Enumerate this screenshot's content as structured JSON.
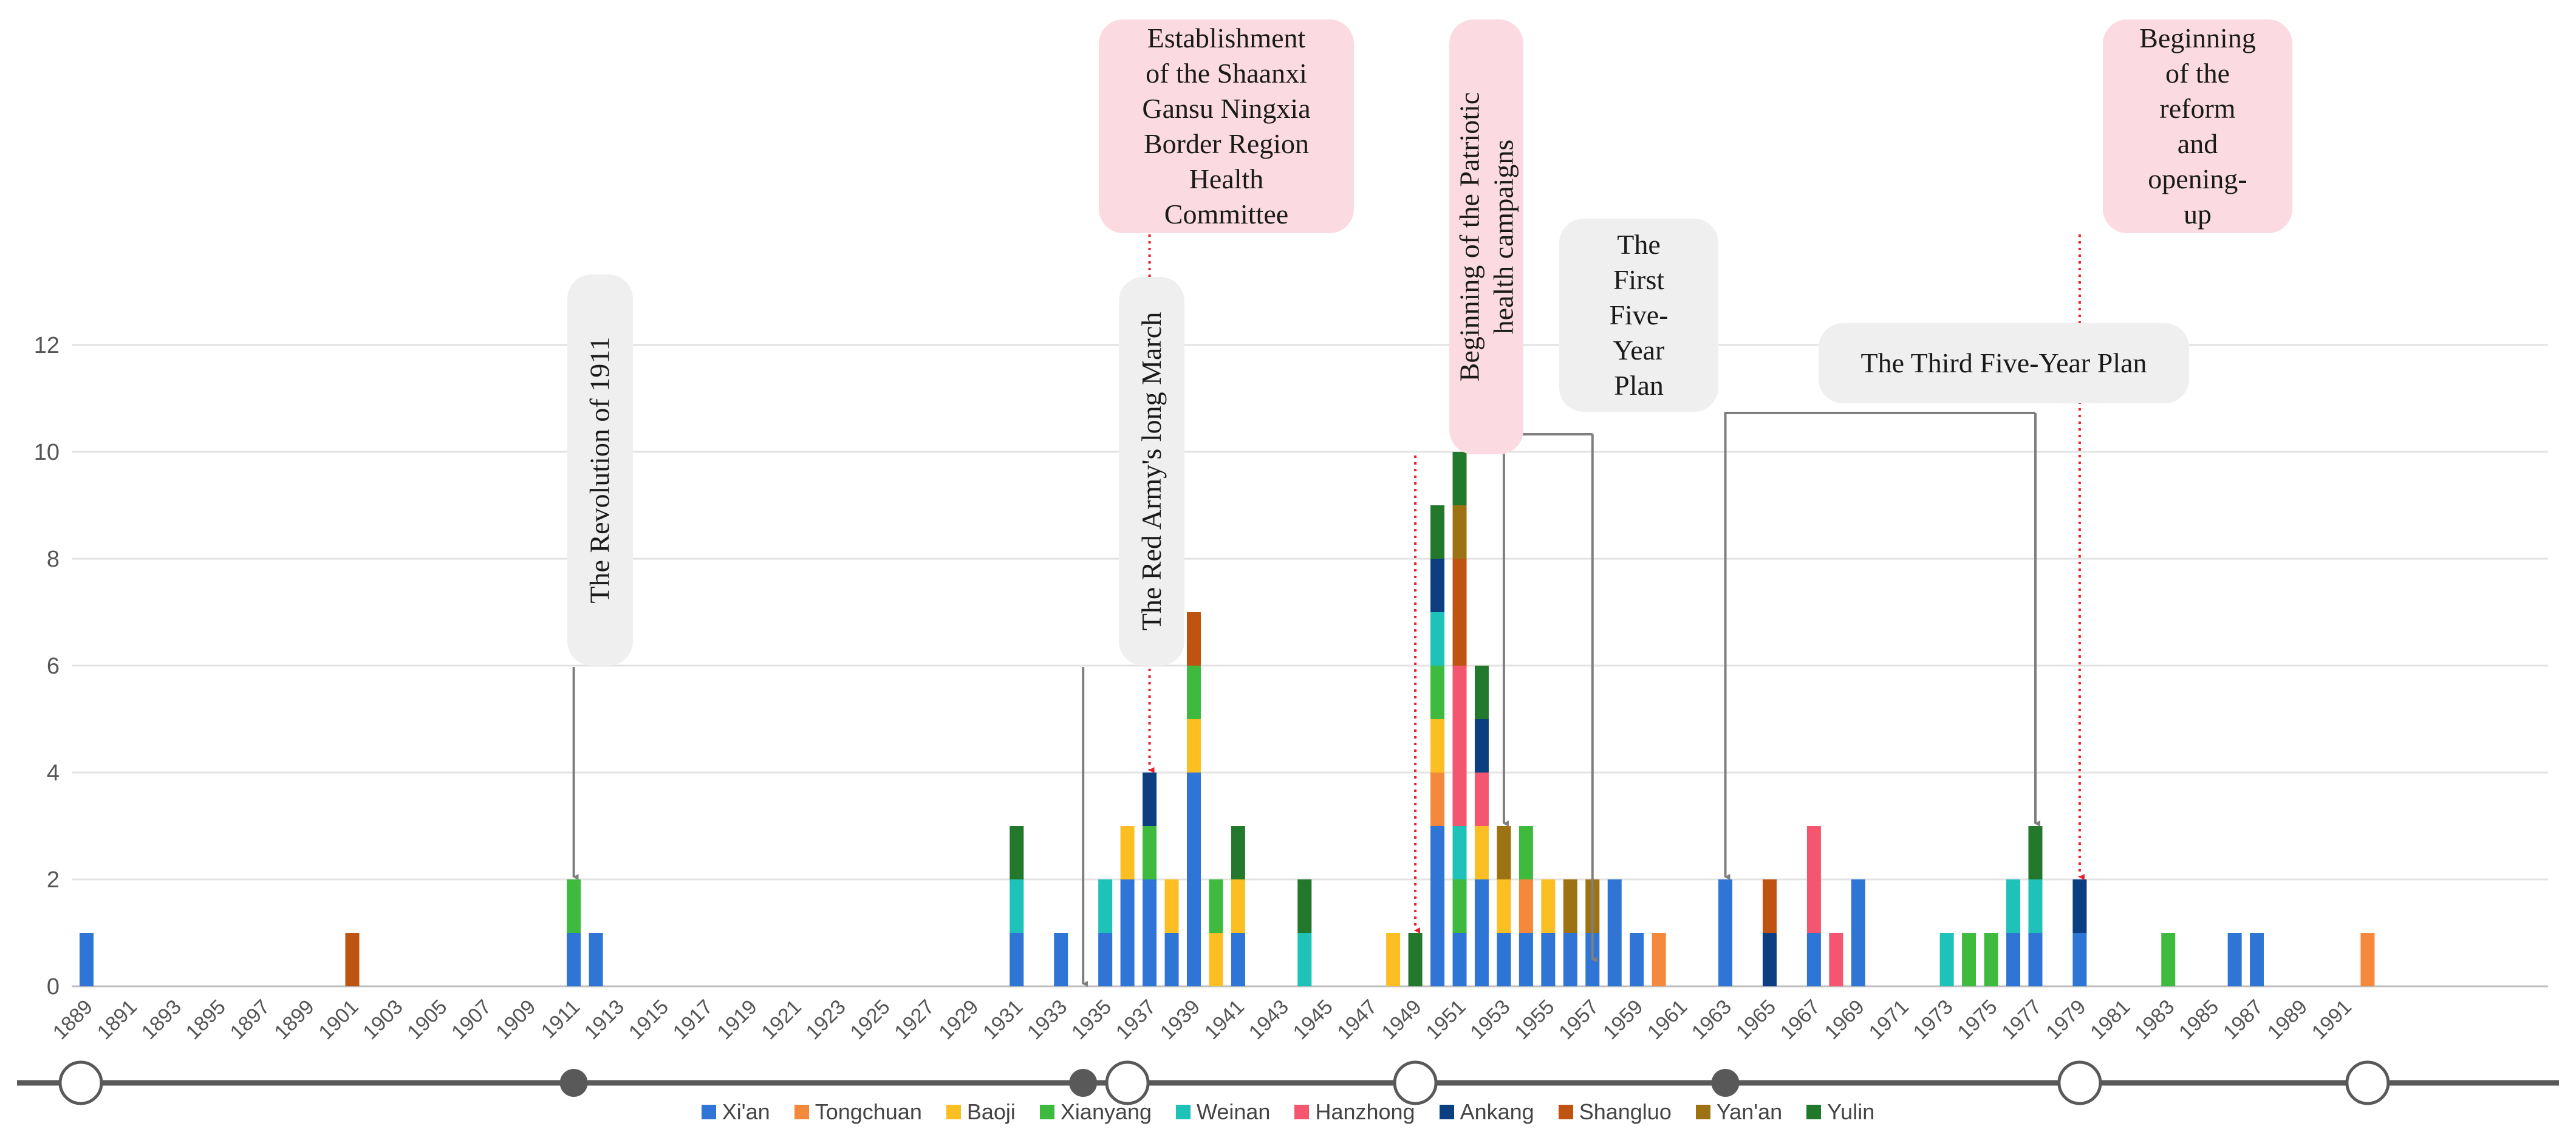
{
  "chart_data": {
    "type": "bar",
    "stacked": true,
    "title": "",
    "xlabel": "",
    "ylabel": "",
    "ylim": [
      0,
      12
    ],
    "yticks": [
      0,
      2,
      4,
      6,
      8,
      10,
      12
    ],
    "grid": true,
    "legend_position": "bottom-center",
    "x_start": 1889,
    "x_end": 1992,
    "x_tick_labels": [
      "1889",
      "1891",
      "1893",
      "1895",
      "1897",
      "1899",
      "1901",
      "1903",
      "1905",
      "1907",
      "1909",
      "1911",
      "1913",
      "1915",
      "1917",
      "1919",
      "1921",
      "1923",
      "1925",
      "1927",
      "1929",
      "1931",
      "1933",
      "1935",
      "1937",
      "1939",
      "1941",
      "1943",
      "1945",
      "1947",
      "1949",
      "1951",
      "1953",
      "1955",
      "1957",
      "1959",
      "1961",
      "1963",
      "1965",
      "1967",
      "1969",
      "1971",
      "1973",
      "1975",
      "1977",
      "1979",
      "1981",
      "1983",
      "1985",
      "1987",
      "1989",
      "1991"
    ],
    "series": [
      {
        "name": "Xi'an",
        "color": "#2e75d6"
      },
      {
        "name": "Tongchuan",
        "color": "#f5893b"
      },
      {
        "name": "Baoji",
        "color": "#fbbf24"
      },
      {
        "name": "Xianyang",
        "color": "#3eba3e"
      },
      {
        "name": "Weinan",
        "color": "#1fc2b8"
      },
      {
        "name": "Hanzhong",
        "color": "#f5566f"
      },
      {
        "name": "Ankang",
        "color": "#0b3f82"
      },
      {
        "name": "Shangluo",
        "color": "#bf5311"
      },
      {
        "name": "Yan'an",
        "color": "#9c7213"
      },
      {
        "name": "Yulin",
        "color": "#22782b"
      }
    ],
    "bars": [
      {
        "year": 1889,
        "stack": [
          [
            "Xi'an",
            1
          ]
        ]
      },
      {
        "year": 1901,
        "stack": [
          [
            "Shangluo",
            1
          ]
        ]
      },
      {
        "year": 1911,
        "stack": [
          [
            "Xi'an",
            1
          ],
          [
            "Xianyang",
            1
          ]
        ]
      },
      {
        "year": 1912,
        "stack": [
          [
            "Xi'an",
            1
          ]
        ]
      },
      {
        "year": 1931,
        "stack": [
          [
            "Xi'an",
            1
          ],
          [
            "Weinan",
            1
          ],
          [
            "Yulin",
            1
          ]
        ]
      },
      {
        "year": 1933,
        "stack": [
          [
            "Xi'an",
            1
          ]
        ]
      },
      {
        "year": 1935,
        "stack": [
          [
            "Xi'an",
            1
          ],
          [
            "Weinan",
            1
          ]
        ]
      },
      {
        "year": 1936,
        "stack": [
          [
            "Xi'an",
            2
          ],
          [
            "Baoji",
            1
          ]
        ]
      },
      {
        "year": 1937,
        "stack": [
          [
            "Xi'an",
            2
          ],
          [
            "Xianyang",
            1
          ],
          [
            "Ankang",
            1
          ]
        ]
      },
      {
        "year": 1938,
        "stack": [
          [
            "Xi'an",
            1
          ],
          [
            "Baoji",
            1
          ]
        ]
      },
      {
        "year": 1939,
        "stack": [
          [
            "Xi'an",
            4
          ],
          [
            "Baoji",
            1
          ],
          [
            "Xianyang",
            1
          ],
          [
            "Shangluo",
            1
          ]
        ]
      },
      {
        "year": 1940,
        "stack": [
          [
            "Baoji",
            1
          ],
          [
            "Xianyang",
            1
          ]
        ]
      },
      {
        "year": 1941,
        "stack": [
          [
            "Xi'an",
            1
          ],
          [
            "Baoji",
            1
          ],
          [
            "Yulin",
            1
          ]
        ]
      },
      {
        "year": 1944,
        "stack": [
          [
            "Weinan",
            1
          ],
          [
            "Yulin",
            1
          ]
        ]
      },
      {
        "year": 1948,
        "stack": [
          [
            "Baoji",
            1
          ]
        ]
      },
      {
        "year": 1949,
        "stack": [
          [
            "Yulin",
            1
          ]
        ]
      },
      {
        "year": 1950,
        "stack": [
          [
            "Xi'an",
            3
          ],
          [
            "Tongchuan",
            1
          ],
          [
            "Baoji",
            1
          ],
          [
            "Xianyang",
            1
          ],
          [
            "Weinan",
            1
          ],
          [
            "Ankang",
            1
          ],
          [
            "Yulin",
            1
          ]
        ]
      },
      {
        "year": 1951,
        "stack": [
          [
            "Xi'an",
            1
          ],
          [
            "Xianyang",
            1
          ],
          [
            "Weinan",
            1
          ],
          [
            "Hanzhong",
            3
          ],
          [
            "Shangluo",
            2
          ],
          [
            "Yan'an",
            1
          ],
          [
            "Yulin",
            1
          ]
        ]
      },
      {
        "year": 1952,
        "stack": [
          [
            "Xi'an",
            2
          ],
          [
            "Baoji",
            1
          ],
          [
            "Hanzhong",
            1
          ],
          [
            "Ankang",
            1
          ],
          [
            "Yulin",
            1
          ]
        ]
      },
      {
        "year": 1953,
        "stack": [
          [
            "Xi'an",
            1
          ],
          [
            "Baoji",
            1
          ],
          [
            "Yan'an",
            1
          ]
        ]
      },
      {
        "year": 1954,
        "stack": [
          [
            "Xi'an",
            1
          ],
          [
            "Tongchuan",
            1
          ],
          [
            "Xianyang",
            1
          ]
        ]
      },
      {
        "year": 1955,
        "stack": [
          [
            "Xi'an",
            1
          ],
          [
            "Baoji",
            1
          ]
        ]
      },
      {
        "year": 1956,
        "stack": [
          [
            "Xi'an",
            1
          ],
          [
            "Yan'an",
            1
          ]
        ]
      },
      {
        "year": 1957,
        "stack": [
          [
            "Xi'an",
            1
          ],
          [
            "Yan'an",
            1
          ]
        ]
      },
      {
        "year": 1958,
        "stack": [
          [
            "Xi'an",
            2
          ]
        ]
      },
      {
        "year": 1959,
        "stack": [
          [
            "Xi'an",
            1
          ]
        ]
      },
      {
        "year": 1960,
        "stack": [
          [
            "Tongchuan",
            1
          ]
        ]
      },
      {
        "year": 1963,
        "stack": [
          [
            "Xi'an",
            2
          ]
        ]
      },
      {
        "year": 1965,
        "stack": [
          [
            "Ankang",
            1
          ],
          [
            "Shangluo",
            1
          ]
        ]
      },
      {
        "year": 1967,
        "stack": [
          [
            "Xi'an",
            1
          ],
          [
            "Hanzhong",
            2
          ]
        ]
      },
      {
        "year": 1968,
        "stack": [
          [
            "Hanzhong",
            1
          ]
        ]
      },
      {
        "year": 1969,
        "stack": [
          [
            "Xi'an",
            2
          ]
        ]
      },
      {
        "year": 1973,
        "stack": [
          [
            "Weinan",
            1
          ]
        ]
      },
      {
        "year": 1974,
        "stack": [
          [
            "Xianyang",
            1
          ]
        ]
      },
      {
        "year": 1975,
        "stack": [
          [
            "Xianyang",
            1
          ]
        ]
      },
      {
        "year": 1976,
        "stack": [
          [
            "Xi'an",
            1
          ],
          [
            "Weinan",
            1
          ]
        ]
      },
      {
        "year": 1977,
        "stack": [
          [
            "Xi'an",
            1
          ],
          [
            "Weinan",
            1
          ],
          [
            "Yulin",
            1
          ]
        ]
      },
      {
        "year": 1979,
        "stack": [
          [
            "Xi'an",
            1
          ],
          [
            "Ankang",
            1
          ]
        ]
      },
      {
        "year": 1983,
        "stack": [
          [
            "Xianyang",
            1
          ]
        ]
      },
      {
        "year": 1986,
        "stack": [
          [
            "Xi'an",
            1
          ]
        ]
      },
      {
        "year": 1987,
        "stack": [
          [
            "Xi'an",
            1
          ]
        ]
      },
      {
        "year": 1992,
        "stack": [
          [
            "Tongchuan",
            1
          ]
        ]
      }
    ],
    "annotations": [
      {
        "id": "revolution-1911",
        "text": "The Revolution of  1911",
        "style": "grey",
        "vertical": true,
        "arrows": [
          {
            "year": 1911,
            "value": 2,
            "color": "#7f7f7f",
            "dotted": false
          }
        ]
      },
      {
        "id": "long-march",
        "text": "The Red Army's long March",
        "style": "grey",
        "vertical": true,
        "arrows": [
          {
            "year": 1934,
            "value": 0,
            "color": "#7f7f7f",
            "dotted": false
          }
        ]
      },
      {
        "id": "border-region-health",
        "lines": [
          "Establishment",
          "of the Shaanxi",
          "Gansu Ningxia",
          "Border Region",
          "Health",
          "Committee"
        ],
        "style": "pink",
        "vertical": false,
        "arrows": [
          {
            "year": 1937,
            "value": 4,
            "color": "#e8202a",
            "dotted": true
          }
        ]
      },
      {
        "id": "patriotic-health",
        "lines": [
          "Beginning of the Patriotic",
          "health campaigns"
        ],
        "style": "pink",
        "vertical": true,
        "arrows": [
          {
            "year": 1949,
            "value": 1,
            "color": "#e8202a",
            "dotted": true
          }
        ]
      },
      {
        "id": "first-five-year",
        "lines": [
          "The",
          "First",
          "Five-",
          "Year",
          "Plan"
        ],
        "style": "grey",
        "vertical": false,
        "bracket": {
          "from_year": 1953,
          "to_year": 1957
        }
      },
      {
        "id": "third-five-year",
        "lines": [
          "The Third Five-Year Plan"
        ],
        "style": "grey",
        "vertical": false,
        "bracket": {
          "from_year": 1963,
          "to_year": 1977
        }
      },
      {
        "id": "reform-opening",
        "lines": [
          "Beginning",
          "of the",
          "reform",
          "and",
          "opening-",
          "up"
        ],
        "style": "pink",
        "vertical": false,
        "arrows": [
          {
            "year": 1979,
            "value": 2,
            "color": "#e8202a",
            "dotted": true
          }
        ]
      }
    ],
    "timeline": {
      "open_circle_years": [
        1889,
        1936,
        1949,
        1979,
        1992
      ],
      "filled_dot_years": [
        1911,
        1934,
        1963
      ]
    }
  }
}
